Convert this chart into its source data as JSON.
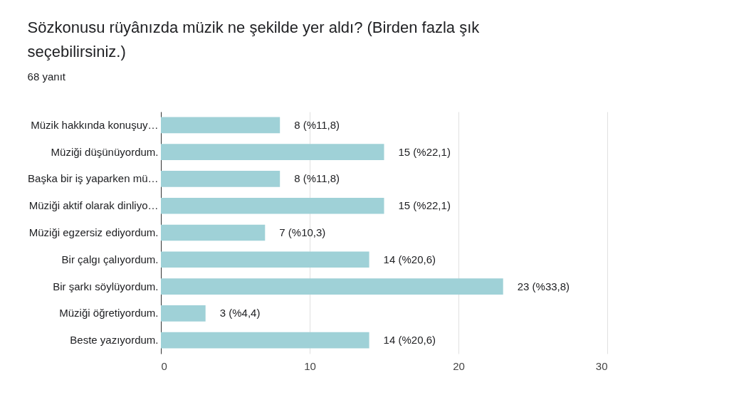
{
  "chart_data": {
    "type": "bar",
    "orientation": "horizontal",
    "title": "Sözkonusu rüyânızda müzik ne şekilde yer aldı? (Birden fazla şık seçebilirsiniz.)",
    "subtitle": "68 yanıt",
    "categories": [
      "Müzik hakkında konuşuy…",
      "Müziği düşünüyordum.",
      "Başka bir iş yaparken mü…",
      "Müziği aktif olarak dinliyo…",
      "Müziği egzersiz ediyordum.",
      "Bir çalgı çalıyordum.",
      "Bir şarkı söylüyordum.",
      "Müziği öğretiyordum.",
      "Beste yazıyordum."
    ],
    "values": [
      8,
      15,
      8,
      15,
      7,
      14,
      23,
      3,
      14
    ],
    "value_labels": [
      "8 (%11,8)",
      "15 (%22,1)",
      "8 (%11,8)",
      "15 (%22,1)",
      "7 (%10,3)",
      "14 (%20,6)",
      "23 (%33,8)",
      "3 (%4,4)",
      "14 (%20,6)"
    ],
    "color": "#9fd1d7",
    "xlim": [
      0,
      30
    ],
    "xticks": [
      0,
      10,
      20,
      30
    ],
    "grid": "x"
  }
}
